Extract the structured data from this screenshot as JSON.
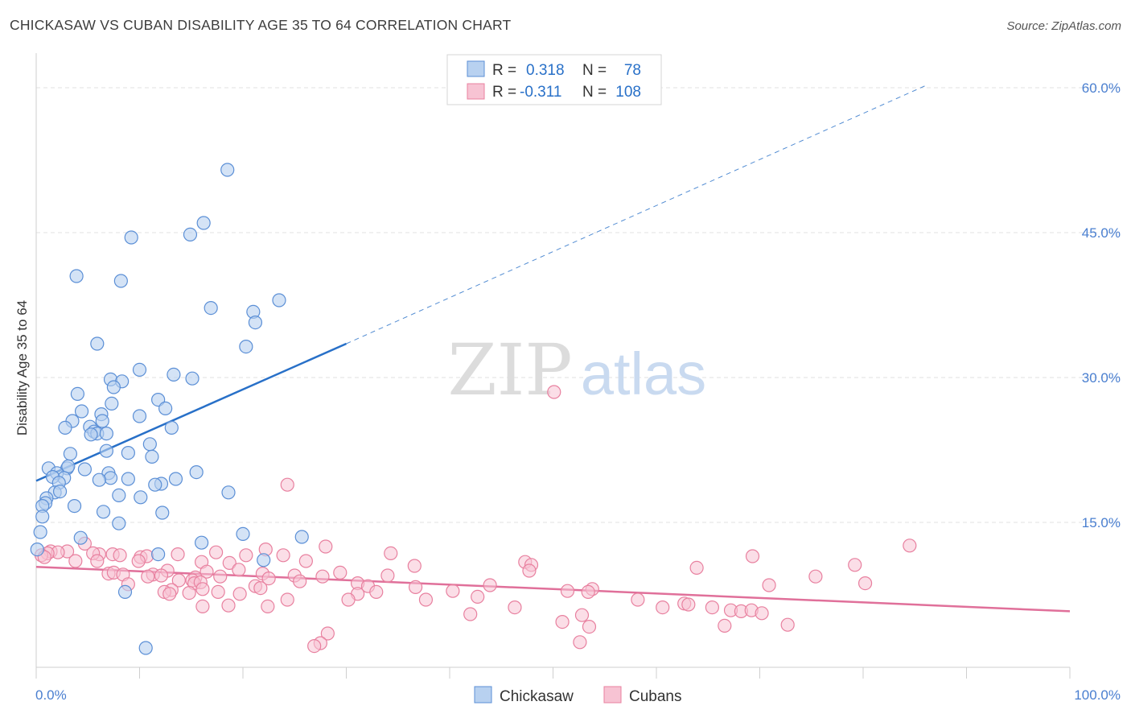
{
  "header": {
    "title": "CHICKASAW VS CUBAN DISABILITY AGE 35 TO 64 CORRELATION CHART",
    "source": "Source: ZipAtlas.com"
  },
  "watermark": {
    "zip": "ZIP",
    "atlas": "atlas"
  },
  "colors": {
    "chickasaw_fill": "#b8d1f0",
    "chickasaw_stroke": "#5b8fd6",
    "chickasaw_line": "#2870c8",
    "cubans_fill": "#f7c3d3",
    "cubans_stroke": "#e8809f",
    "cubans_line": "#e0709a",
    "axis_label": "#4a7fd0",
    "grid": "#e2e2e2"
  },
  "chart_data": {
    "type": "scatter",
    "title": "CHICKASAW VS CUBAN DISABILITY AGE 35 TO 64 CORRELATION CHART",
    "xlabel": "",
    "ylabel": "Disability Age 35 to 64",
    "xlim": [
      0,
      100
    ],
    "ylim": [
      0,
      63
    ],
    "x_tick_labels": [
      "0.0%",
      "100.0%"
    ],
    "y_ticks": [
      15,
      30,
      45,
      60
    ],
    "y_tick_labels": [
      "15.0%",
      "30.0%",
      "45.0%",
      "60.0%"
    ],
    "legend_position": "top-center",
    "series": [
      {
        "name": "Chickasaw",
        "R": "0.318",
        "N": "78",
        "trend": {
          "x_start": 0,
          "y_start": 19.3,
          "x_end": 30,
          "y_end": 33.5,
          "dashed_until_x": 86,
          "y_at_dashed_end": 60.2
        },
        "points": [
          [
            18.5,
            51.5
          ],
          [
            16.2,
            46.0
          ],
          [
            9.2,
            44.5
          ],
          [
            14.9,
            44.8
          ],
          [
            3.9,
            40.5
          ],
          [
            8.2,
            40.0
          ],
          [
            23.5,
            38.0
          ],
          [
            16.9,
            37.2
          ],
          [
            21.0,
            36.8
          ],
          [
            21.2,
            35.7
          ],
          [
            5.9,
            33.5
          ],
          [
            20.3,
            33.2
          ],
          [
            10.0,
            30.8
          ],
          [
            13.3,
            30.3
          ],
          [
            7.2,
            29.8
          ],
          [
            8.3,
            29.6
          ],
          [
            15.1,
            29.9
          ],
          [
            7.5,
            29.0
          ],
          [
            4.0,
            28.3
          ],
          [
            11.8,
            27.7
          ],
          [
            7.3,
            27.3
          ],
          [
            12.5,
            26.8
          ],
          [
            4.4,
            26.5
          ],
          [
            6.3,
            26.2
          ],
          [
            10.0,
            26.0
          ],
          [
            3.5,
            25.5
          ],
          [
            6.4,
            25.5
          ],
          [
            2.8,
            24.8
          ],
          [
            5.2,
            24.9
          ],
          [
            13.1,
            24.8
          ],
          [
            5.6,
            24.4
          ],
          [
            5.9,
            24.2
          ],
          [
            6.8,
            24.2
          ],
          [
            5.3,
            24.1
          ],
          [
            11.0,
            23.1
          ],
          [
            3.3,
            22.1
          ],
          [
            8.9,
            22.2
          ],
          [
            6.8,
            22.4
          ],
          [
            11.2,
            21.8
          ],
          [
            4.7,
            20.5
          ],
          [
            1.2,
            20.6
          ],
          [
            3.0,
            20.6
          ],
          [
            3.1,
            20.8
          ],
          [
            2.0,
            20.1
          ],
          [
            7.0,
            20.1
          ],
          [
            7.2,
            19.6
          ],
          [
            6.1,
            19.4
          ],
          [
            8.9,
            19.5
          ],
          [
            13.5,
            19.5
          ],
          [
            15.5,
            20.2
          ],
          [
            2.7,
            19.6
          ],
          [
            1.6,
            19.7
          ],
          [
            2.2,
            19.1
          ],
          [
            12.1,
            19.0
          ],
          [
            11.5,
            18.9
          ],
          [
            1.8,
            18.1
          ],
          [
            2.3,
            18.2
          ],
          [
            18.6,
            18.1
          ],
          [
            8.0,
            17.8
          ],
          [
            10.1,
            17.6
          ],
          [
            1.0,
            17.5
          ],
          [
            0.9,
            17.0
          ],
          [
            0.6,
            16.7
          ],
          [
            3.7,
            16.7
          ],
          [
            6.5,
            16.1
          ],
          [
            12.2,
            16.0
          ],
          [
            0.6,
            15.6
          ],
          [
            8.0,
            14.9
          ],
          [
            0.4,
            14.0
          ],
          [
            20.0,
            13.8
          ],
          [
            4.3,
            13.4
          ],
          [
            25.7,
            13.5
          ],
          [
            16.0,
            12.9
          ],
          [
            0.1,
            12.2
          ],
          [
            11.8,
            11.7
          ],
          [
            22.0,
            11.1
          ],
          [
            8.6,
            7.8
          ],
          [
            10.6,
            2.0
          ]
        ]
      },
      {
        "name": "Cubans",
        "R": "-0.311",
        "N": "108",
        "trend": {
          "x_start": 0,
          "y_start": 10.4,
          "x_end": 100,
          "y_end": 5.8
        },
        "points": [
          [
            50.1,
            28.5
          ],
          [
            24.3,
            18.9
          ],
          [
            84.5,
            12.6
          ],
          [
            28.0,
            12.5
          ],
          [
            4.7,
            12.8
          ],
          [
            3.0,
            12.0
          ],
          [
            1.4,
            12.0
          ],
          [
            2.1,
            11.9
          ],
          [
            1.1,
            11.8
          ],
          [
            0.5,
            11.6
          ],
          [
            0.8,
            11.4
          ],
          [
            6.1,
            11.7
          ],
          [
            7.4,
            11.7
          ],
          [
            5.5,
            11.8
          ],
          [
            8.1,
            11.6
          ],
          [
            10.1,
            11.4
          ],
          [
            10.7,
            11.5
          ],
          [
            13.7,
            11.7
          ],
          [
            17.4,
            11.9
          ],
          [
            20.3,
            11.6
          ],
          [
            22.2,
            12.2
          ],
          [
            23.9,
            11.6
          ],
          [
            34.3,
            11.8
          ],
          [
            26.1,
            11.0
          ],
          [
            3.8,
            11.0
          ],
          [
            5.9,
            11.0
          ],
          [
            9.9,
            11.0
          ],
          [
            16.0,
            10.9
          ],
          [
            18.7,
            10.8
          ],
          [
            36.6,
            10.5
          ],
          [
            47.3,
            10.9
          ],
          [
            47.9,
            10.6
          ],
          [
            63.9,
            10.3
          ],
          [
            69.3,
            11.5
          ],
          [
            79.2,
            10.6
          ],
          [
            47.7,
            10.0
          ],
          [
            7.0,
            9.7
          ],
          [
            7.5,
            9.8
          ],
          [
            8.4,
            9.6
          ],
          [
            11.3,
            9.6
          ],
          [
            12.7,
            10.0
          ],
          [
            16.5,
            9.9
          ],
          [
            19.6,
            10.1
          ],
          [
            21.9,
            9.7
          ],
          [
            25.0,
            9.5
          ],
          [
            27.7,
            9.4
          ],
          [
            29.4,
            9.8
          ],
          [
            34.0,
            9.5
          ],
          [
            75.4,
            9.4
          ],
          [
            12.1,
            9.5
          ],
          [
            10.8,
            9.4
          ],
          [
            17.8,
            9.4
          ],
          [
            15.4,
            9.3
          ],
          [
            22.5,
            9.2
          ],
          [
            15.1,
            9.0
          ],
          [
            13.8,
            9.0
          ],
          [
            25.5,
            8.9
          ],
          [
            31.1,
            8.7
          ],
          [
            32.1,
            8.4
          ],
          [
            43.9,
            8.5
          ],
          [
            70.9,
            8.5
          ],
          [
            80.2,
            8.7
          ],
          [
            8.9,
            8.6
          ],
          [
            15.3,
            8.7
          ],
          [
            15.9,
            8.8
          ],
          [
            21.2,
            8.4
          ],
          [
            21.7,
            8.2
          ],
          [
            13.1,
            8.0
          ],
          [
            16.1,
            8.1
          ],
          [
            36.7,
            8.3
          ],
          [
            53.8,
            8.1
          ],
          [
            12.4,
            7.8
          ],
          [
            14.8,
            7.7
          ],
          [
            12.9,
            7.6
          ],
          [
            17.6,
            7.8
          ],
          [
            19.7,
            7.6
          ],
          [
            31.1,
            7.6
          ],
          [
            32.9,
            7.8
          ],
          [
            40.3,
            7.9
          ],
          [
            51.4,
            7.9
          ],
          [
            53.4,
            7.8
          ],
          [
            24.3,
            7.0
          ],
          [
            30.2,
            7.0
          ],
          [
            37.7,
            7.0
          ],
          [
            42.7,
            7.3
          ],
          [
            58.2,
            7.0
          ],
          [
            62.7,
            6.6
          ],
          [
            63.1,
            6.5
          ],
          [
            18.6,
            6.4
          ],
          [
            16.1,
            6.3
          ],
          [
            22.4,
            6.3
          ],
          [
            46.3,
            6.2
          ],
          [
            60.6,
            6.2
          ],
          [
            65.4,
            6.2
          ],
          [
            67.2,
            5.9
          ],
          [
            68.2,
            5.8
          ],
          [
            69.2,
            5.9
          ],
          [
            70.2,
            5.6
          ],
          [
            42.0,
            5.5
          ],
          [
            52.8,
            5.4
          ],
          [
            50.9,
            4.7
          ],
          [
            53.5,
            4.2
          ],
          [
            66.6,
            4.3
          ],
          [
            72.7,
            4.4
          ],
          [
            52.6,
            2.6
          ],
          [
            28.2,
            3.5
          ],
          [
            27.5,
            2.5
          ],
          [
            26.9,
            2.2
          ]
        ]
      }
    ]
  }
}
